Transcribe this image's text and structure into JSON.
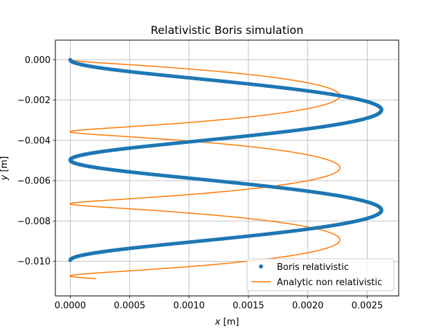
{
  "chart_data": {
    "type": "line",
    "title": "Relativistic Boris simulation",
    "xlabel": "x [m]",
    "ylabel": "y [m]",
    "xlabel_var": "x",
    "xlabel_unit": " [m]",
    "ylabel_var": "y",
    "ylabel_unit": " [m]",
    "xlim": [
      -0.000125,
      0.002765
    ],
    "ylim": [
      -0.01172,
      0.00097
    ],
    "xticks": [
      0.0,
      0.0005,
      0.001,
      0.0015,
      0.002,
      0.0025
    ],
    "xtick_labels": [
      "0.0000",
      "0.0005",
      "0.0010",
      "0.0015",
      "0.0020",
      "0.0025"
    ],
    "yticks": [
      0.0,
      -0.002,
      -0.004,
      -0.006,
      -0.008,
      -0.01
    ],
    "ytick_labels": [
      "0.000",
      "−0.002",
      "−0.004",
      "−0.006",
      "−0.008",
      "−0.010"
    ],
    "grid": true,
    "legend_position": "lower-right",
    "series": [
      {
        "name": "Boris relativistic",
        "style": "markers",
        "color": "#1f77b4",
        "helix": {
          "x_center": 0.00131,
          "radius": 0.00131,
          "y_start": 0.0,
          "y_end": -0.00995,
          "turns": 2.0,
          "y_amplitude": 0.00016,
          "y_offset": 0.00016
        },
        "x": [
          0.0,
          0.00131,
          0.00262,
          0.00131,
          0.0,
          0.00131,
          0.00262,
          0.00131,
          0.0
        ],
        "y": [
          0.0,
          0.00034,
          -0.0025,
          -0.0053,
          -0.005,
          -0.0083,
          -0.0075,
          -0.0103,
          -0.00995
        ]
      },
      {
        "name": "Analytic non relativistic",
        "style": "line",
        "color": "#ff7f0e",
        "helix": {
          "x_center": 0.001135,
          "radius": 0.001135,
          "y_start": 0.0,
          "y_end": -0.01108,
          "turns": 3.1,
          "y_amplitude": 0.00037,
          "y_offset": 0.00037
        },
        "x": [
          0.0,
          0.001135,
          0.00227,
          0.001135,
          0.0,
          0.001135,
          0.00227,
          0.001135,
          0.0,
          0.001135,
          0.00227,
          0.00081
        ],
        "y": [
          0.0,
          0.00037,
          -0.0018,
          -0.0032,
          -0.0036,
          -0.0039,
          -0.0054,
          -0.0068,
          -0.0071,
          -0.0075,
          -0.0089,
          -0.01108
        ]
      }
    ]
  }
}
